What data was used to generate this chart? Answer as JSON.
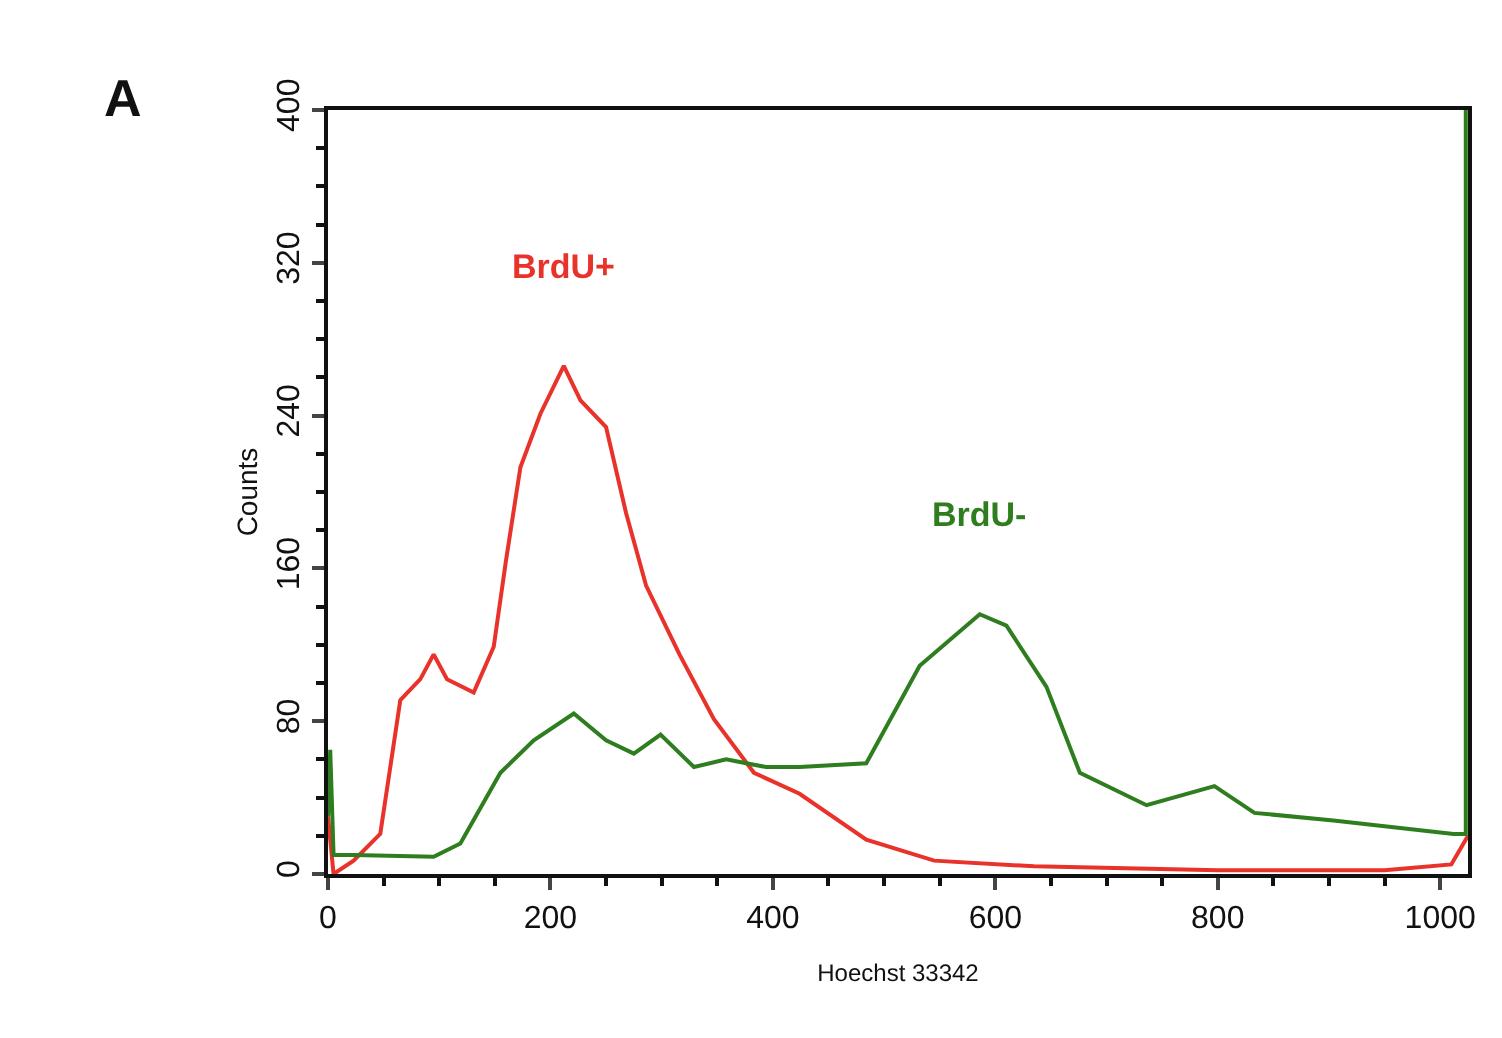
{
  "chart_data": {
    "type": "line",
    "xlabel": "Hoechst 33342",
    "ylabel": "Counts",
    "annotations": [
      "A"
    ],
    "xlim": [
      0,
      1025
    ],
    "ylim": [
      0,
      400
    ],
    "xticks": [
      0,
      200,
      400,
      600,
      800,
      1000
    ],
    "yticks": [
      0,
      80,
      160,
      240,
      320,
      400
    ],
    "series": [
      {
        "name": "BrdU+",
        "color": "#e8322a",
        "x": [
          0,
          5,
          23,
          47,
          65,
          83,
          95,
          107,
          131,
          149,
          160,
          173,
          191,
          212,
          227,
          250,
          268,
          286,
          316,
          347,
          383,
          424,
          484,
          545,
          635,
          800,
          950,
          1010,
          1025
        ],
        "values": [
          30,
          0,
          7,
          21,
          91,
          102,
          115,
          102,
          95,
          119,
          164,
          213,
          241,
          266,
          248,
          234,
          189,
          151,
          115,
          81,
          53,
          42,
          18,
          7,
          4,
          2,
          2,
          5,
          20
        ]
      },
      {
        "name": "BrdU-",
        "color": "#2e7d1e",
        "x": [
          0,
          2,
          5,
          23,
          95,
          119,
          155,
          185,
          221,
          250,
          275,
          299,
          329,
          358,
          394,
          424,
          484,
          532,
          586,
          610,
          646,
          676,
          736,
          797,
          833,
          904,
          1012,
          1023,
          1023
        ],
        "values": [
          30,
          65,
          10,
          10,
          9,
          16,
          53,
          70,
          84,
          70,
          63,
          73,
          56,
          60,
          56,
          56,
          58,
          109,
          136,
          130,
          98,
          53,
          36,
          46,
          32,
          28,
          21,
          21,
          400
        ]
      }
    ]
  }
}
